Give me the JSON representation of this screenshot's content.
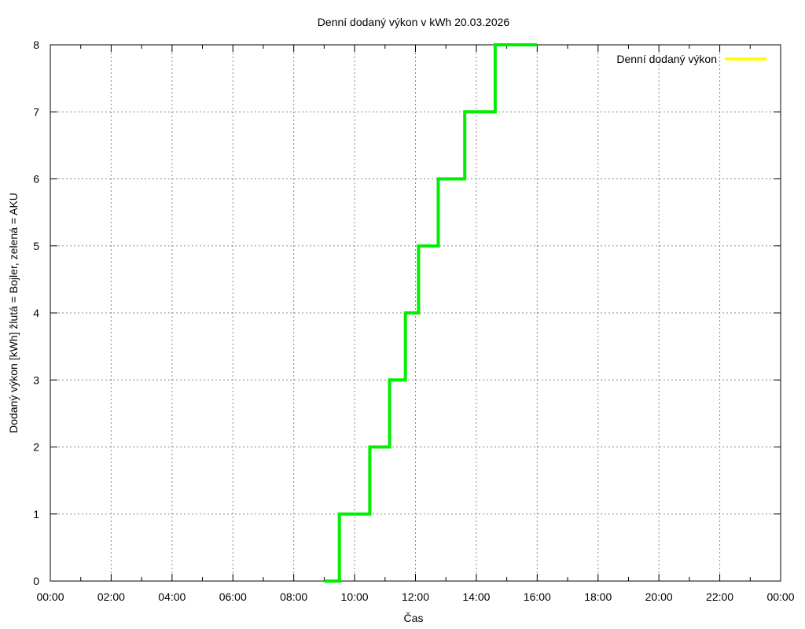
{
  "chart_data": {
    "type": "line",
    "title": "Denní dodaný výkon v kWh 20.03.2026",
    "xlabel": "Čas",
    "ylabel": "Dodaný výkon [kWh]  žlutá = Bojler, zelená = AKU",
    "xlim": [
      0,
      24
    ],
    "ylim": [
      0,
      8
    ],
    "x_ticks": [
      "00:00",
      "02:00",
      "04:00",
      "06:00",
      "08:00",
      "10:00",
      "12:00",
      "14:00",
      "16:00",
      "18:00",
      "20:00",
      "22:00",
      "00:00"
    ],
    "y_ticks": [
      "0",
      "1",
      "2",
      "3",
      "4",
      "5",
      "6",
      "7",
      "8"
    ],
    "grid": true,
    "legend_position": "top-right",
    "series": [
      {
        "name": "Denní dodaný výkon",
        "color": "#ffff00",
        "points": []
      },
      {
        "color": "#00ee00",
        "step": true,
        "points": [
          {
            "x": 9.0,
            "y": 0
          },
          {
            "x": 9.5,
            "y": 0
          },
          {
            "x": 9.5,
            "y": 1
          },
          {
            "x": 10.5,
            "y": 1
          },
          {
            "x": 10.5,
            "y": 2
          },
          {
            "x": 11.15,
            "y": 2
          },
          {
            "x": 11.15,
            "y": 3
          },
          {
            "x": 11.67,
            "y": 3
          },
          {
            "x": 11.67,
            "y": 4
          },
          {
            "x": 12.1,
            "y": 4
          },
          {
            "x": 12.1,
            "y": 5
          },
          {
            "x": 12.75,
            "y": 5
          },
          {
            "x": 12.75,
            "y": 6
          },
          {
            "x": 13.62,
            "y": 6
          },
          {
            "x": 13.62,
            "y": 7
          },
          {
            "x": 14.62,
            "y": 7
          },
          {
            "x": 14.62,
            "y": 8
          },
          {
            "x": 16.0,
            "y": 8
          }
        ]
      }
    ]
  }
}
